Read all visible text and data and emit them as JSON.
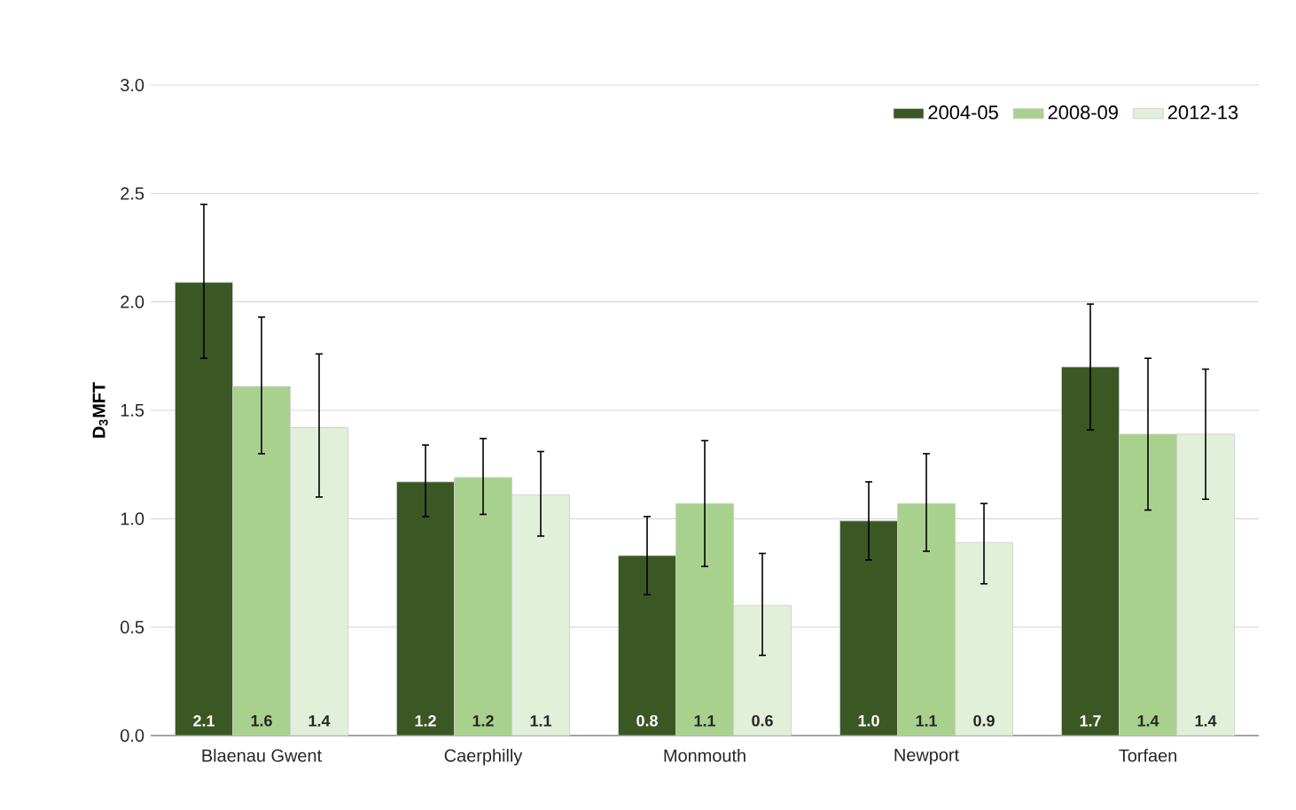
{
  "chart_data": {
    "type": "bar",
    "ylabel": "D$_{3}$MFT",
    "categories": [
      "Blaenau Gwent",
      "Caerphilly",
      "Monmouth",
      "Newport",
      "Torfaen"
    ],
    "series": [
      {
        "name": "2004-05",
        "color": "#3b5724",
        "values": [
          2.09,
          1.17,
          0.83,
          0.99,
          1.7
        ],
        "value_labels": [
          "2.1",
          "1.2",
          "0.8",
          "1.0",
          "1.7"
        ],
        "errors": [
          [
            1.74,
            2.45
          ],
          [
            1.01,
            1.34
          ],
          [
            0.65,
            1.01
          ],
          [
            0.81,
            1.17
          ],
          [
            1.41,
            1.99
          ]
        ]
      },
      {
        "name": "2008-09",
        "color": "#a9d18e",
        "values": [
          1.61,
          1.19,
          1.07,
          1.07,
          1.39
        ],
        "value_labels": [
          "1.6",
          "1.2",
          "1.1",
          "1.1",
          "1.4"
        ],
        "errors": [
          [
            1.3,
            1.93
          ],
          [
            1.02,
            1.37
          ],
          [
            0.78,
            1.36
          ],
          [
            0.85,
            1.3
          ],
          [
            1.04,
            1.74
          ]
        ]
      },
      {
        "name": "2012-13",
        "color": "#e2efd9",
        "values": [
          1.42,
          1.11,
          0.6,
          0.89,
          1.39
        ],
        "value_labels": [
          "1.4",
          "1.1",
          "0.6",
          "0.9",
          "1.4"
        ],
        "errors": [
          [
            1.1,
            1.76
          ],
          [
            0.92,
            1.31
          ],
          [
            0.37,
            0.84
          ],
          [
            0.7,
            1.07
          ],
          [
            1.09,
            1.69
          ]
        ]
      }
    ],
    "ylim": [
      0,
      3
    ],
    "yticks": [
      {
        "value": 0,
        "label": "0.0"
      },
      {
        "value": 0.5,
        "label": "0.5"
      },
      {
        "value": 1,
        "label": "1.0"
      },
      {
        "value": 1.5,
        "label": "1.5"
      },
      {
        "value": 2,
        "label": "2.0"
      },
      {
        "value": 2.5,
        "label": "2.5"
      },
      {
        "value": 3,
        "label": "3.0"
      }
    ],
    "grid": "y",
    "legend": "top right"
  }
}
